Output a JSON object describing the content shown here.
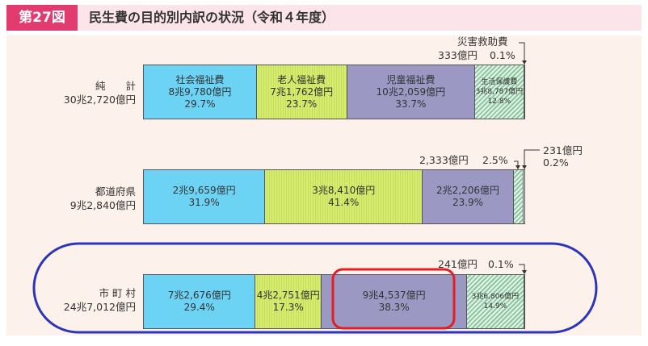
{
  "figure": {
    "number": "第27図",
    "title": "民生費の目的別内訳の状況（令和４年度）"
  },
  "colors": {
    "header_accent": "#e23b6f",
    "header_bg": "#fbe4ea",
    "panel_bg": "#fdf1ec",
    "social_welfare": "#6dd3f5",
    "elderly_welfare": "#d1e86a",
    "child_welfare": "#9b99c4",
    "livelihood_protection": "#8cc9a0",
    "disaster_relief": "#ffffff",
    "highlight_ellipse": "#2c35b8",
    "highlight_box": "#e31e24"
  },
  "chart_data": {
    "type": "bar",
    "stacked": true,
    "normalized_percent": true,
    "title": "民生費の目的別内訳の状況（令和４年度）",
    "rows": [
      {
        "key": "total",
        "name_line1": "純　　計",
        "name_line2": "30兆2,720億円",
        "segments": [
          {
            "category": "社会福祉費",
            "name_label": "社会福祉費",
            "amount": "8兆9,780億円",
            "percent_label": "29.7%",
            "percent": 29.7,
            "color_key": "social"
          },
          {
            "category": "老人福祉費",
            "name_label": "老人福祉費",
            "amount": "7兆1,762億円",
            "percent_label": "23.7%",
            "percent": 23.7,
            "color_key": "elder"
          },
          {
            "category": "児童福祉費",
            "name_label": "児童福祉費",
            "amount": "10兆2,059億円",
            "percent_label": "33.7%",
            "percent": 33.7,
            "color_key": "child"
          },
          {
            "category": "生活保護費",
            "name_label": "生活保護費",
            "amount": "3兆8,787億円",
            "percent_label": "12.8%",
            "percent": 12.8,
            "color_key": "life"
          },
          {
            "category": "災害救助費",
            "name_label": "",
            "amount": "",
            "percent_label": "",
            "percent": 0.1,
            "color_key": "disaster"
          }
        ],
        "callout": {
          "name": "災害救助費",
          "amount": "333億円",
          "percent": "0.1%"
        }
      },
      {
        "key": "prefecture",
        "name_line1": "都道府県",
        "name_line2": "9兆2,840億円",
        "segments": [
          {
            "category": "社会福祉費",
            "name_label": "",
            "amount": "2兆9,659億円",
            "percent_label": "31.9%",
            "percent": 31.9,
            "color_key": "social"
          },
          {
            "category": "老人福祉費",
            "name_label": "",
            "amount": "3兆8,410億円",
            "percent_label": "41.4%",
            "percent": 41.4,
            "color_key": "elder"
          },
          {
            "category": "児童福祉費",
            "name_label": "",
            "amount": "2兆2,206億円",
            "percent_label": "23.9%",
            "percent": 23.9,
            "color_key": "child"
          },
          {
            "category": "生活保護費",
            "name_label": "",
            "amount": "",
            "percent_label": "",
            "percent": 2.5,
            "color_key": "life"
          },
          {
            "category": "災害救助費",
            "name_label": "",
            "amount": "",
            "percent_label": "",
            "percent": 0.2,
            "color_key": "disaster"
          }
        ],
        "callout_life": {
          "amount": "2,333億円",
          "percent": "2.5%"
        },
        "callout_disaster": {
          "amount": "231億円",
          "percent": "0.2%"
        }
      },
      {
        "key": "municipality",
        "name_line1": "市 町 村",
        "name_line2": "24兆7,012億円",
        "segments": [
          {
            "category": "社会福祉費",
            "name_label": "",
            "amount": "7兆2,676億円",
            "percent_label": "29.4%",
            "percent": 29.4,
            "color_key": "social"
          },
          {
            "category": "老人福祉費",
            "name_label": "",
            "amount": "4兆2,751億円",
            "percent_label": "17.3%",
            "percent": 17.3,
            "color_key": "elder"
          },
          {
            "category": "児童福祉費",
            "name_label": "",
            "amount": "9兆4,537億円",
            "percent_label": "38.3%",
            "percent": 38.3,
            "color_key": "child"
          },
          {
            "category": "生活保護費",
            "name_label": "",
            "amount": "3兆6,806億円",
            "percent_label": "14.9%",
            "percent": 14.9,
            "color_key": "life"
          },
          {
            "category": "災害救助費",
            "name_label": "",
            "amount": "",
            "percent_label": "",
            "percent": 0.1,
            "color_key": "disaster"
          }
        ],
        "callout": {
          "amount": "241億円",
          "percent": "0.1%"
        },
        "highlighted_category": "児童福祉費"
      }
    ]
  }
}
